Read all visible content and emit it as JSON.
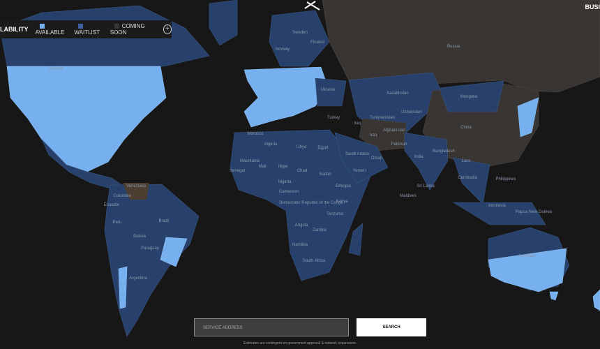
{
  "header": {
    "legend_title": "LABILITY",
    "legend": [
      "AVAILABLE",
      "WAITLIST",
      "COMING SOON"
    ],
    "nav": "BUSI"
  },
  "map": {
    "labels": [
      "Russia",
      "Canada",
      "Sweden",
      "Finland",
      "Norway",
      "Kazakhstan",
      "Mongolia",
      "China",
      "Ukraine",
      "Turkey",
      "Iran",
      "Afghanistan",
      "Turkmenistan",
      "Uzbekistan",
      "Pakistan",
      "India",
      "Bangladesh",
      "Laos",
      "Cambodia",
      "Philippines",
      "Indonesia",
      "Papua New Guinea",
      "Australia",
      "Algeria",
      "Libya",
      "Egypt",
      "Morocco",
      "Mali",
      "Niger",
      "Chad",
      "Sudan",
      "Mauritania",
      "Senegal",
      "Nigeria",
      "Cameroon",
      "Ethiopia",
      "Saudi Arabia",
      "Yemen",
      "Oman",
      "Iraq",
      "Kenya",
      "Democratic Republic of the Congo",
      "Tanzania",
      "Angola",
      "Zambia",
      "Namibia",
      "South Africa",
      "Sri Lanka",
      "Maldives",
      "Venezuela",
      "Colombia",
      "Ecuador",
      "Peru",
      "Brazil",
      "Bolivia",
      "Paraguay",
      "Argentina"
    ]
  },
  "search": {
    "placeholder": "SERVICE ADDRESS",
    "button": "SEARCH",
    "disclaimer": "Estimates are contingent on government approval & network expansions."
  }
}
